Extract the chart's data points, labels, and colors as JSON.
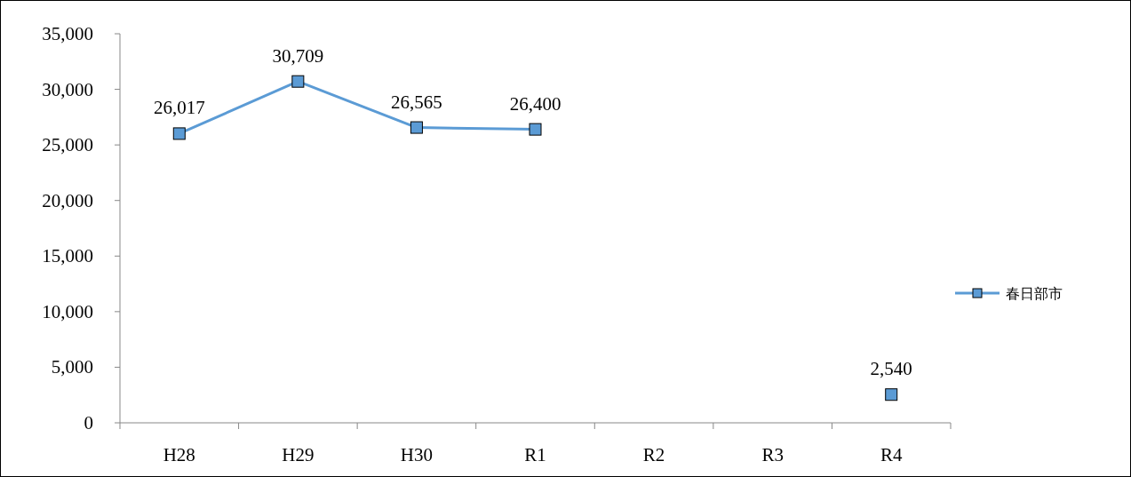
{
  "chart_data": {
    "type": "line",
    "categories": [
      "H28",
      "H29",
      "H30",
      "R1",
      "R2",
      "R3",
      "R4"
    ],
    "series": [
      {
        "name": "春日部市",
        "color": "#5b9bd5",
        "values": [
          26017,
          30709,
          26565,
          26400,
          null,
          null,
          2540
        ],
        "value_labels": [
          "26,017",
          "30,709",
          "26,565",
          "26,400",
          null,
          null,
          "2,540"
        ]
      }
    ],
    "ylim": [
      0,
      35000
    ],
    "yticks": [
      {
        "value": 0,
        "label": "0"
      },
      {
        "value": 5000,
        "label": "5,000"
      },
      {
        "value": 10000,
        "label": "10,000"
      },
      {
        "value": 15000,
        "label": "15,000"
      },
      {
        "value": 20000,
        "label": "20,000"
      },
      {
        "value": 25000,
        "label": "25,000"
      },
      {
        "value": 30000,
        "label": "30,000"
      },
      {
        "value": 35000,
        "label": "35,000"
      }
    ],
    "marker": "square",
    "line_style": "solid",
    "grid": false,
    "legend": "right"
  }
}
